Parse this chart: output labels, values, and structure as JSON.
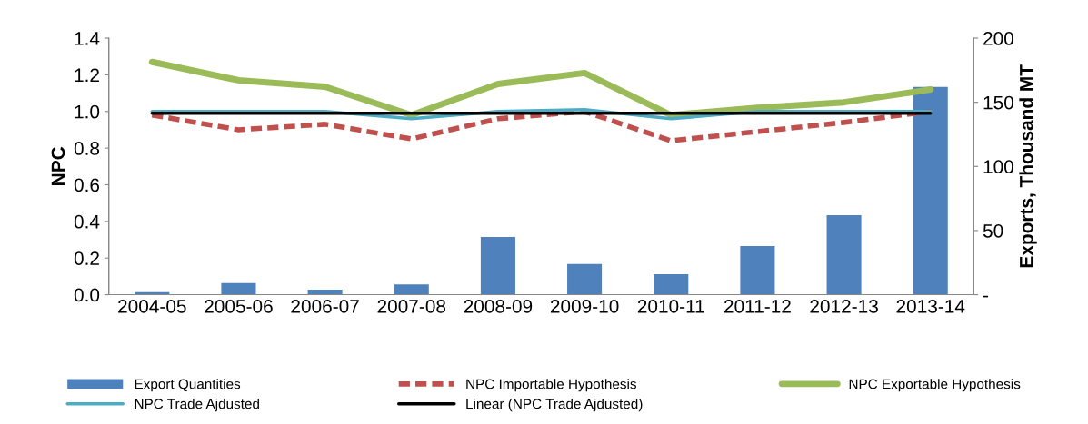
{
  "chart_data": {
    "type": "bar",
    "ylabel": "NPC",
    "y2label": "Exports, Thousand MT",
    "categories": [
      "2004-05",
      "2005-06",
      "2006-07",
      "2007-08",
      "2008-09",
      "2009-10",
      "2010-11",
      "2011-12",
      "2012-13",
      "2013-14"
    ],
    "ylim": [
      0,
      1.4
    ],
    "yticks": [
      {
        "value": 0,
        "label": "0.0"
      },
      0.2,
      0.4,
      0.6,
      0.8,
      {
        "value": 1,
        "label": "1.0"
      },
      1.2,
      1.4
    ],
    "y2lim": [
      0,
      200
    ],
    "y2ticks": [
      {
        "value": 0,
        "label": "-"
      },
      50,
      100,
      150,
      200
    ],
    "legend": "bottom",
    "grid": false,
    "series": [
      {
        "name": "Export Quantities",
        "axis": "y2",
        "color": "#4f81bd",
        "values": [
          2,
          9,
          4,
          8,
          45,
          24,
          16,
          38,
          62,
          162
        ]
      },
      {
        "name": "NPC Importable Hypothesis",
        "type": "line",
        "line_style": "dashed",
        "color": "#c0504d",
        "values": [
          0.98,
          0.9,
          0.93,
          0.85,
          0.96,
          1.0,
          0.84,
          0.89,
          0.94,
          1.0
        ]
      },
      {
        "name": "NPC Exportable Hypothesis",
        "type": "line",
        "line_style": "solid",
        "color": "#9bbb59",
        "values": [
          1.27,
          1.17,
          1.135,
          0.98,
          1.15,
          1.21,
          0.98,
          1.02,
          1.05,
          1.12
        ]
      },
      {
        "name": "NPC Trade Ajdusted",
        "type": "line",
        "line_style": "solid",
        "color": "#4bacc6",
        "values": [
          1.0,
          1.0,
          1.0,
          0.96,
          1.0,
          1.01,
          0.96,
          1.0,
          1.0,
          1.0
        ]
      },
      {
        "name": "Linear (NPC Trade Ajdusted)",
        "type": "line",
        "line_style": "solid",
        "color": "#000000",
        "values": [
          0.99,
          0.99,
          0.99,
          0.99,
          0.99,
          0.99,
          0.99,
          0.99,
          0.99,
          0.99
        ]
      }
    ]
  }
}
